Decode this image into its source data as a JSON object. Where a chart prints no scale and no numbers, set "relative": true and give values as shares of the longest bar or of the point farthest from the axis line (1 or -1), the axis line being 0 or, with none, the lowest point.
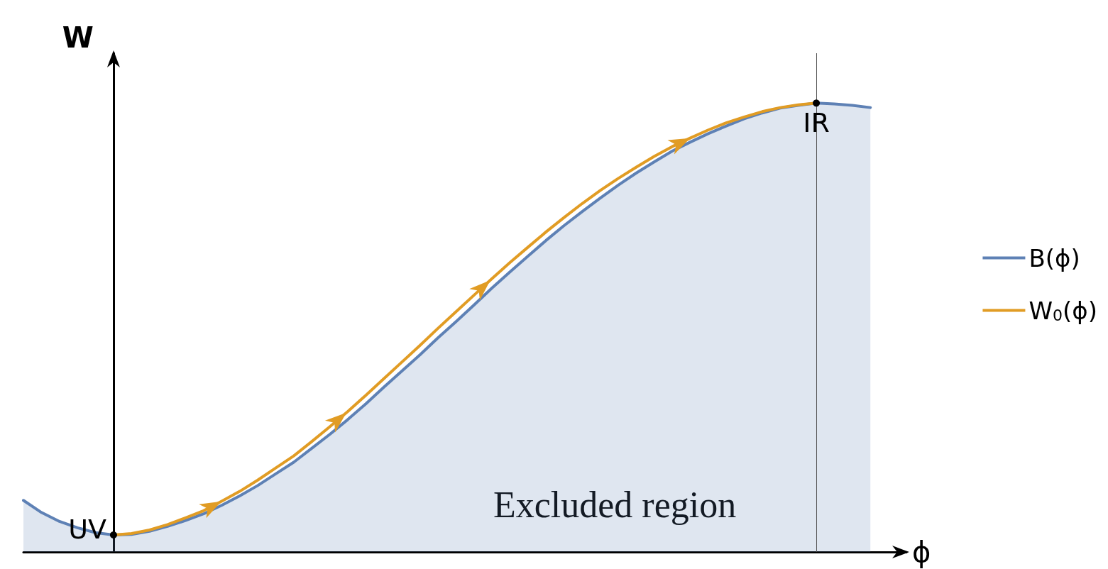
{
  "chart_data": {
    "type": "line",
    "relative": true,
    "xlabel": "ϕ",
    "ylabel": "W",
    "categories": [
      null,
      null,
      null,
      null,
      null,
      null,
      null,
      null,
      null,
      null,
      null,
      null,
      null,
      null,
      null,
      null,
      null,
      null,
      null,
      null,
      null,
      null,
      null,
      null,
      null,
      null,
      null,
      null,
      null,
      null,
      null,
      null,
      null,
      null,
      null,
      null,
      null,
      null,
      null,
      null,
      null,
      null,
      null,
      null,
      null,
      null,
      null,
      null
    ],
    "series": [
      {
        "name": "B(ϕ)",
        "type": "area",
        "color": "#5e81b5",
        "values": [
          0.115,
          0.088,
          0.068,
          0.054,
          0.043,
          0.038,
          0.039,
          0.046,
          0.057,
          0.07,
          0.085,
          0.104,
          0.125,
          0.148,
          0.174,
          0.2,
          0.231,
          0.262,
          0.295,
          0.33,
          0.367,
          0.403,
          0.439,
          0.477,
          0.513,
          0.55,
          0.588,
          0.624,
          0.659,
          0.694,
          0.727,
          0.758,
          0.788,
          0.817,
          0.844,
          0.869,
          0.893,
          0.913,
          0.932,
          0.949,
          0.965,
          0.978,
          0.989,
          0.995,
          1,
          0.998,
          0.995,
          0.99
        ]
      },
      {
        "name": "W$_{0}$(ϕ)",
        "type": "line",
        "color": "#e19c24",
        "values": [
          null,
          null,
          null,
          null,
          null,
          0.038,
          0.041,
          0.049,
          0.061,
          0.076,
          0.092,
          0.113,
          0.135,
          0.16,
          0.187,
          0.214,
          0.246,
          0.279,
          0.313,
          0.349,
          0.386,
          0.423,
          0.46,
          0.498,
          0.535,
          0.572,
          0.609,
          0.645,
          0.679,
          0.713,
          0.745,
          0.776,
          0.805,
          0.832,
          0.857,
          0.881,
          0.903,
          0.922,
          0.94,
          0.956,
          0.969,
          0.981,
          0.99,
          0.996,
          1,
          null,
          null,
          null
        ]
      }
    ],
    "annotations": [
      "UV",
      "IR",
      "Excluded region"
    ],
    "legend": "right",
    "tick_labels": false,
    "grid": false,
    "marker": "none",
    "line_style": "solid"
  }
}
